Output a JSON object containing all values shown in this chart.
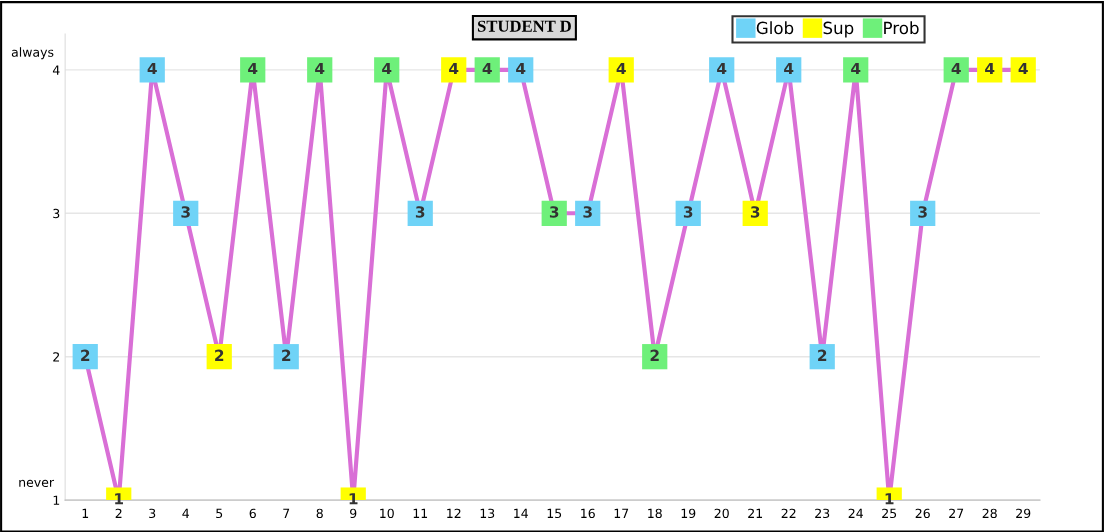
{
  "chart_data": {
    "type": "line",
    "title": "STUDENT D",
    "categories": [
      "1",
      "2",
      "3",
      "4",
      "5",
      "6",
      "7",
      "8",
      "9",
      "10",
      "11",
      "12",
      "13",
      "14",
      "15",
      "16",
      "17",
      "18",
      "19",
      "20",
      "21",
      "22",
      "23",
      "24",
      "25",
      "26",
      "27",
      "28",
      "29"
    ],
    "series": [
      {
        "color": "#d96fd6",
        "values": [
          2,
          1,
          4,
          3,
          2,
          4,
          2,
          4,
          1,
          4,
          3,
          4,
          4,
          4,
          3,
          3,
          4,
          2,
          3,
          4,
          3,
          4,
          2,
          4,
          1,
          3,
          4,
          4,
          4
        ]
      },
      {
        "type": "scatter",
        "name": "Glob",
        "color": "#6fd3f7",
        "marker": "square",
        "values": [
          2,
          null,
          4,
          3,
          null,
          null,
          2,
          null,
          null,
          null,
          3,
          null,
          null,
          4,
          null,
          3,
          null,
          null,
          3,
          4,
          null,
          4,
          2,
          null,
          null,
          3,
          null,
          null,
          null
        ],
        "value_labels": [
          "2",
          null,
          "4",
          "3",
          null,
          null,
          "2",
          null,
          null,
          null,
          "3",
          null,
          null,
          "4",
          null,
          "3",
          null,
          null,
          "3",
          "4",
          null,
          "4",
          "2",
          null,
          null,
          "3",
          null,
          null,
          null
        ]
      },
      {
        "type": "scatter",
        "name": "Sup",
        "color": "#ffff00",
        "marker": "square",
        "values": [
          null,
          1,
          null,
          null,
          2,
          null,
          null,
          null,
          1,
          null,
          null,
          4,
          null,
          null,
          null,
          null,
          4,
          null,
          null,
          null,
          3,
          null,
          null,
          null,
          1,
          null,
          null,
          4,
          4
        ],
        "value_labels": [
          null,
          "1",
          null,
          null,
          "2",
          null,
          null,
          null,
          "1",
          null,
          null,
          "4",
          null,
          null,
          null,
          null,
          "4",
          null,
          null,
          null,
          "3",
          null,
          null,
          null,
          "1",
          null,
          null,
          "4",
          "4"
        ]
      },
      {
        "type": "scatter",
        "name": "Prob",
        "color": "#6ef07a",
        "marker": "square",
        "values": [
          null,
          null,
          null,
          null,
          null,
          4,
          null,
          4,
          null,
          4,
          null,
          null,
          4,
          null,
          3,
          null,
          null,
          2,
          null,
          null,
          null,
          null,
          null,
          4,
          null,
          null,
          4,
          null,
          null
        ],
        "value_labels": [
          null,
          null,
          null,
          null,
          null,
          "4",
          null,
          "4",
          null,
          "4",
          null,
          null,
          "4",
          null,
          "3",
          null,
          null,
          "2",
          null,
          null,
          null,
          null,
          null,
          "4",
          null,
          null,
          "4",
          null,
          null
        ]
      }
    ],
    "ylim": [
      1,
      4.25
    ],
    "yticks": [
      1,
      2,
      3,
      4
    ],
    "annotations": [
      "always",
      "never"
    ],
    "grid": "y",
    "legend": "top right"
  }
}
